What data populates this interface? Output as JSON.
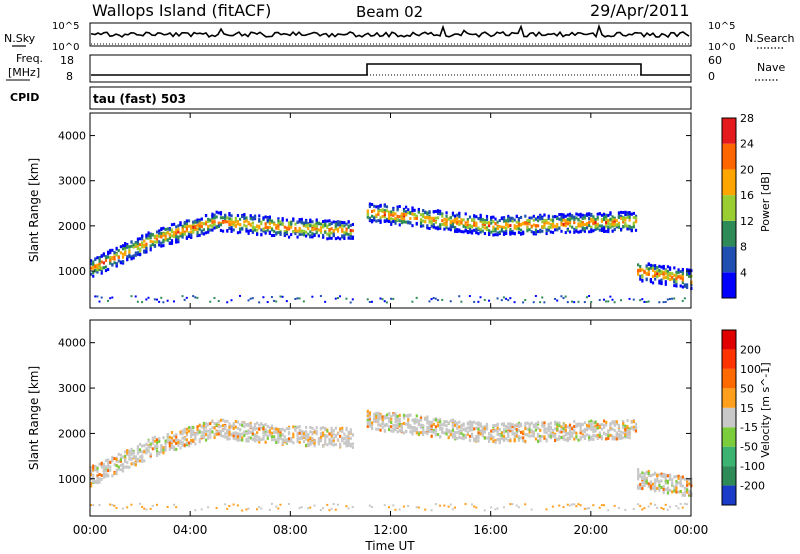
{
  "header": {
    "station": "Wallops Island (fitACF)",
    "beam": "Beam 02",
    "date": "29/Apr/2011"
  },
  "top_panels": {
    "nsky_label": "N.Sky",
    "nsky_ticks": [
      "10^5",
      "10^0"
    ],
    "nsearch_label": "N.Search",
    "nsearch_ticks": [
      "10^5",
      "10^0"
    ],
    "freq_label_1": "Freq.",
    "freq_label_2": "[MHz]",
    "freq_ticks": [
      "18",
      "8"
    ],
    "nave_label": "Nave",
    "nave_ticks": [
      "60",
      "0"
    ],
    "cpid_label": "CPID",
    "cpid_text": "tau (fast) 503"
  },
  "chart_data": [
    {
      "type": "heatmap",
      "panel": "power",
      "ylabel": "Slant Range [km]",
      "yticks": [
        "1000",
        "2000",
        "3000",
        "4000"
      ],
      "ylim": [
        180,
        4500
      ],
      "xlim_hours": [
        0,
        24
      ],
      "colorbar": {
        "label": "Power [dB]",
        "ticks": [
          "4",
          "8",
          "12",
          "16",
          "20",
          "24",
          "28"
        ],
        "colors": [
          "#0000ff",
          "#1f4fb0",
          "#2e8b57",
          "#9acd32",
          "#ffa500",
          "#ff6600",
          "#e41a1c"
        ]
      },
      "echo_bands": [
        {
          "t": [
            0.0,
            2.5,
            5.0
          ],
          "range": [
            1050,
            1700,
            2100
          ]
        },
        {
          "t": [
            5.0,
            8.0,
            10.5
          ],
          "range": [
            2100,
            1950,
            1900
          ]
        },
        {
          "t": [
            11.0,
            16.0,
            21.8
          ],
          "range": [
            2300,
            2000,
            2100
          ]
        },
        {
          "t": [
            21.8,
            24.0
          ],
          "range": [
            1000,
            800
          ]
        }
      ]
    },
    {
      "type": "heatmap",
      "panel": "velocity",
      "ylabel": "Slant Range [km]",
      "yticks": [
        "1000",
        "2000",
        "3000",
        "4000"
      ],
      "ylim": [
        180,
        4500
      ],
      "xlim_hours": [
        0,
        24
      ],
      "xticks": [
        "00:00",
        "04:00",
        "08:00",
        "12:00",
        "16:00",
        "20:00",
        "00:00"
      ],
      "xlabel": "Time UT",
      "colorbar": {
        "label": "Velocity [m s^-1]",
        "ticks": [
          "200",
          "100",
          "50",
          "15",
          "-15",
          "-50",
          "-100",
          "-200"
        ],
        "colors": [
          "#1a3cc8",
          "#2e8b57",
          "#3cb371",
          "#7ccd3c",
          "#c8c8c8",
          "#ff9f1c",
          "#ff6a00",
          "#ff3300",
          "#e00000"
        ]
      }
    }
  ]
}
